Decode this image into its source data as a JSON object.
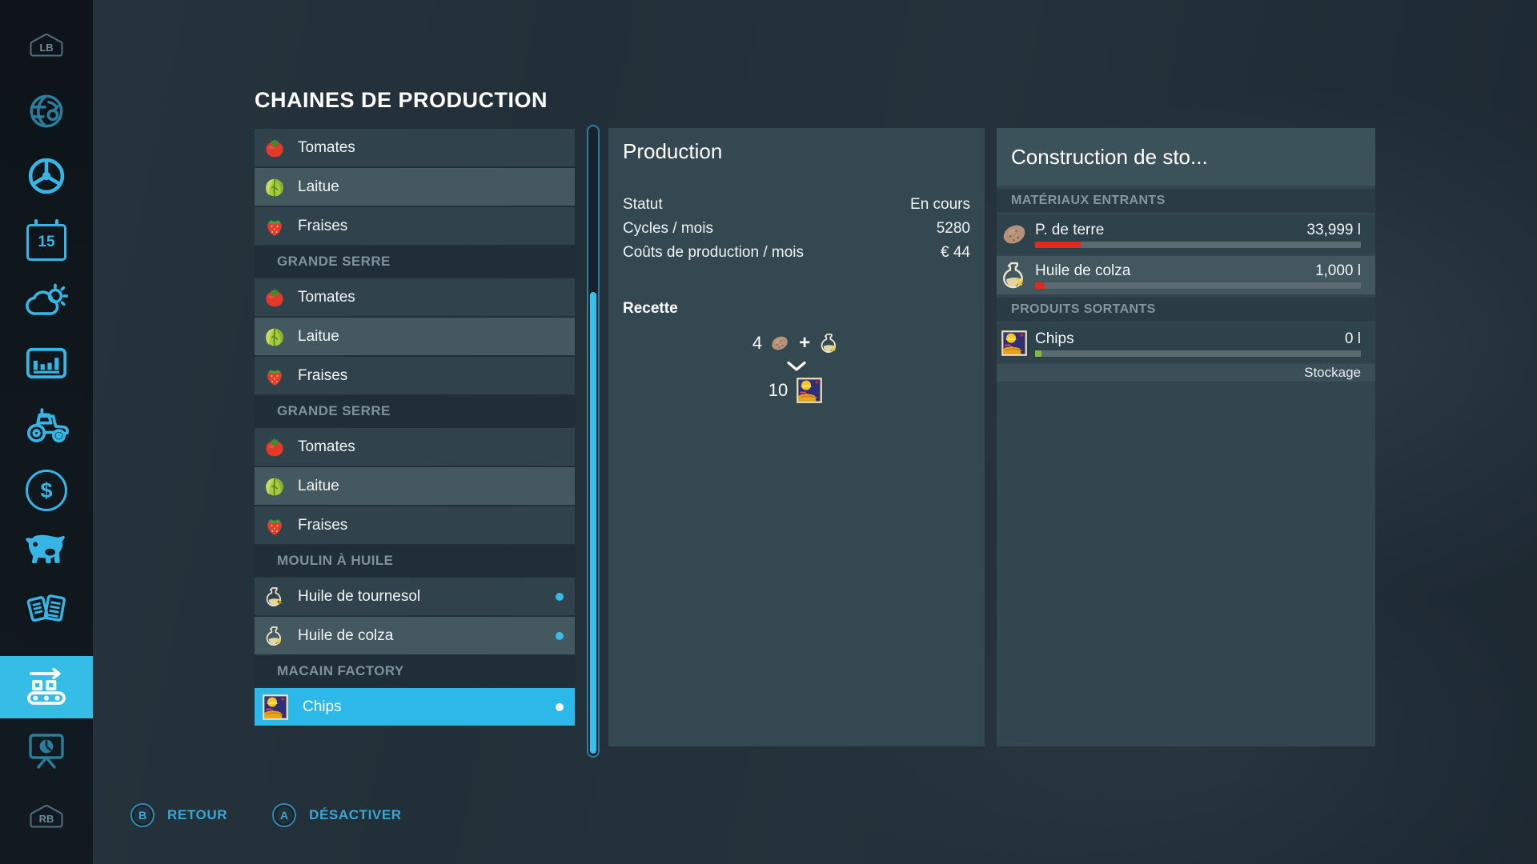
{
  "page_title": "CHAINES DE PRODUCTION",
  "sidebar": {
    "lb_badge": "LB",
    "rb_badge": "RB",
    "calendar_day": "15",
    "dollar_glyph": "$"
  },
  "list": {
    "rows": [
      {
        "type": "item",
        "icon": "tomato",
        "label": "Tomates"
      },
      {
        "type": "item",
        "icon": "lettuce",
        "label": "Laitue",
        "alt": true
      },
      {
        "type": "item",
        "icon": "strawberry",
        "label": "Fraises"
      },
      {
        "type": "header",
        "label": "GRANDE SERRE"
      },
      {
        "type": "item",
        "icon": "tomato",
        "label": "Tomates"
      },
      {
        "type": "item",
        "icon": "lettuce",
        "label": "Laitue",
        "alt": true
      },
      {
        "type": "item",
        "icon": "strawberry",
        "label": "Fraises"
      },
      {
        "type": "header",
        "label": "GRANDE SERRE"
      },
      {
        "type": "item",
        "icon": "tomato",
        "label": "Tomates"
      },
      {
        "type": "item",
        "icon": "lettuce",
        "label": "Laitue",
        "alt": true
      },
      {
        "type": "item",
        "icon": "strawberry",
        "label": "Fraises"
      },
      {
        "type": "header",
        "label": "MOULIN À HUILE"
      },
      {
        "type": "item",
        "icon": "oil-sunflower",
        "label": "Huile de tournesol",
        "dot": true
      },
      {
        "type": "item",
        "icon": "oil-canola",
        "label": "Huile de colza",
        "alt": true,
        "dot": true
      },
      {
        "type": "header",
        "label": "MACAIN FACTORY"
      },
      {
        "type": "item",
        "icon": "chips",
        "label": "Chips",
        "selected": true,
        "dot": true
      }
    ]
  },
  "production": {
    "title": "Production",
    "stats": [
      {
        "label": "Statut",
        "value": "En cours"
      },
      {
        "label": "Cycles / mois",
        "value": "5280"
      },
      {
        "label": "Coûts de production / mois",
        "value": "€ 44"
      }
    ],
    "recipe": {
      "heading": "Recette",
      "input_quantity": "4",
      "plus": "+",
      "output_quantity": "10"
    }
  },
  "storage": {
    "title": "Construction de sto...",
    "inputs_heading": "MATÉRIAUX ENTRANTS",
    "outputs_heading": "PRODUITS SORTANTS",
    "inputs": [
      {
        "icon": "potato",
        "label": "P. de terre",
        "value": "33,999 l",
        "fill_percent": 14,
        "bar_color": "#e02a1e"
      },
      {
        "icon": "oil-canola",
        "label": "Huile de colza",
        "value": "1,000 l",
        "fill_percent": 3,
        "bar_color": "#e02a1e",
        "alt": true
      }
    ],
    "outputs": [
      {
        "icon": "chips",
        "label": "Chips",
        "value": "0 l",
        "fill_percent": 2,
        "bar_color": "#86b83e"
      }
    ],
    "footer": "Stockage"
  },
  "help_bar": [
    {
      "button": "B",
      "label": "RETOUR"
    },
    {
      "button": "A",
      "label": "DÉSACTIVER"
    }
  ],
  "colors": {
    "accent": "#35bde8",
    "selected_row": "#2cb9ea",
    "bar_red": "#e02a1e",
    "bar_green": "#86b83e"
  }
}
